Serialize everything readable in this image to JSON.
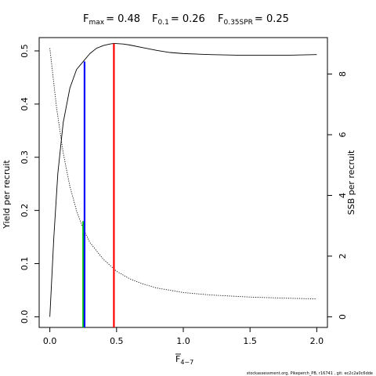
{
  "chart_data": {
    "type": "line",
    "title": {
      "fmax": {
        "sym": "F",
        "sub": "max",
        "value": "= 0.48"
      },
      "f01": {
        "sym": "F",
        "sub": "0.1",
        "value": "= 0.26"
      },
      "fspr": {
        "sym": "F",
        "sub": "0.35SPR",
        "value": "= 0.25"
      }
    },
    "xlabel": {
      "sym": "F",
      "sub": "4−7"
    },
    "ylabel_left": "Yield per recruit",
    "ylabel_right": "SSB per recruit",
    "xlim": [
      -0.08,
      2.08
    ],
    "ylim_left": [
      -0.02,
      0.525
    ],
    "ylim_right": [
      -0.35,
      9.2
    ],
    "x_ticks": [
      0.0,
      0.5,
      1.0,
      1.5,
      2.0
    ],
    "x_tick_labels": [
      "0.0",
      "0.5",
      "1.0",
      "1.5",
      "2.0"
    ],
    "y_left_ticks": [
      0.0,
      0.1,
      0.2,
      0.3,
      0.4,
      0.5
    ],
    "y_left_tick_labels": [
      "0.0",
      "0.1",
      "0.2",
      "0.3",
      "0.4",
      "0.5"
    ],
    "y_right_ticks": [
      0,
      2,
      4,
      6,
      8
    ],
    "y_right_tick_labels": [
      "0",
      "2",
      "4",
      "6",
      "8"
    ],
    "series": [
      {
        "role": "yield",
        "axis": "left",
        "style": "solid",
        "color": "#000000",
        "x": [
          0.0,
          0.03,
          0.06,
          0.1,
          0.15,
          0.2,
          0.25,
          0.3,
          0.35,
          0.4,
          0.45,
          0.48,
          0.55,
          0.6,
          0.7,
          0.8,
          0.9,
          1.0,
          1.2,
          1.4,
          1.6,
          1.8,
          2.0
        ],
        "y": [
          0.0,
          0.15,
          0.27,
          0.365,
          0.43,
          0.465,
          0.48,
          0.495,
          0.505,
          0.51,
          0.513,
          0.514,
          0.513,
          0.511,
          0.506,
          0.501,
          0.497,
          0.495,
          0.493,
          0.492,
          0.492,
          0.492,
          0.493
        ]
      },
      {
        "role": "ssb",
        "axis": "right",
        "style": "dotted",
        "color": "#000000",
        "x": [
          0.0,
          0.05,
          0.1,
          0.15,
          0.2,
          0.25,
          0.3,
          0.4,
          0.5,
          0.6,
          0.7,
          0.8,
          1.0,
          1.2,
          1.5,
          1.8,
          2.0
        ],
        "y": [
          8.85,
          6.9,
          5.4,
          4.3,
          3.5,
          2.9,
          2.45,
          1.9,
          1.5,
          1.25,
          1.08,
          0.95,
          0.8,
          0.72,
          0.65,
          0.61,
          0.59
        ]
      }
    ],
    "reference_lines": [
      {
        "name": "F0.35SPR",
        "x": 0.25,
        "y_top": 0.18,
        "color": "#00cc00"
      },
      {
        "name": "F0.1",
        "x": 0.26,
        "y_top": 0.48,
        "color": "#0000ff"
      },
      {
        "name": "Fmax",
        "x": 0.48,
        "y_top": 0.514,
        "color": "#ff0000"
      }
    ],
    "grid": false,
    "legend": "none"
  },
  "footer": "stockassessment.org, Pikeperch_PB, r16741 , git: ec2c2a0c6dde"
}
